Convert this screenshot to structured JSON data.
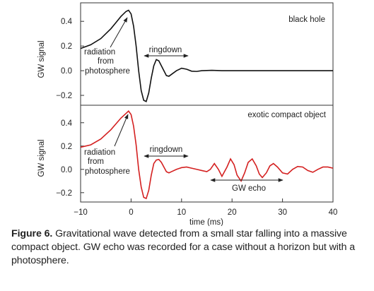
{
  "figure": {
    "caption_label": "Figure 6.",
    "caption_text": "Gravitational wave detected from a small star falling into a massive compact object. GW echo was recorded for a case without a horizon but with a photosphere."
  },
  "chart_data": [
    {
      "type": "line",
      "panel_label": "black hole",
      "ylabel": "GW signal",
      "xlim": [
        -10,
        40
      ],
      "ylim": [
        -0.28,
        0.55
      ],
      "yticks": [
        0.4,
        0.2,
        0.0,
        -0.2
      ],
      "ytick_labels": [
        "0.4",
        "0.2",
        "0.0",
        "−0.2"
      ],
      "series": [
        {
          "color": "#111111",
          "x": [
            -10,
            -8,
            -6,
            -4,
            -3,
            -2,
            -1,
            -0.5,
            0,
            0.5,
            1,
            1.5,
            2,
            2.5,
            3,
            3.5,
            4,
            4.5,
            5,
            5.5,
            6,
            6.5,
            7,
            7.5,
            8,
            9,
            10,
            11,
            12,
            13,
            14,
            16,
            18,
            20,
            25,
            30,
            40
          ],
          "y": [
            0.18,
            0.21,
            0.26,
            0.34,
            0.39,
            0.44,
            0.48,
            0.49,
            0.46,
            0.36,
            0.2,
            0.0,
            -0.16,
            -0.24,
            -0.25,
            -0.18,
            -0.06,
            0.04,
            0.09,
            0.08,
            0.04,
            0.0,
            -0.04,
            -0.045,
            -0.03,
            0.0,
            0.02,
            0.012,
            -0.004,
            -0.006,
            0.0,
            0.003,
            0.0,
            0.0,
            0.0,
            0.0,
            0.0
          ]
        }
      ],
      "annotations": [
        {
          "text": "radiation",
          "line": 1
        },
        {
          "text": "from",
          "line": 2
        },
        {
          "text": "photosphere",
          "line": 3
        },
        {
          "text": "ringdown",
          "line": 1
        }
      ]
    },
    {
      "type": "line",
      "panel_label": "exotic compact object",
      "ylabel": "GW signal",
      "xlabel": "time (ms)",
      "xlim": [
        -10,
        40
      ],
      "ylim": [
        -0.28,
        0.55
      ],
      "xticks": [
        -10,
        0,
        10,
        20,
        30,
        40
      ],
      "xtick_labels": [
        "−10",
        "0",
        "10",
        "20",
        "30",
        "40"
      ],
      "yticks": [
        0.4,
        0.2,
        0.0,
        -0.2
      ],
      "ytick_labels": [
        "0.4",
        "0.2",
        "0.0",
        "−0.2"
      ],
      "series": [
        {
          "color": "#d42020",
          "x": [
            -10,
            -8,
            -6,
            -4,
            -3,
            -2,
            -1,
            -0.5,
            0,
            0.5,
            1,
            1.5,
            2,
            2.5,
            3,
            3.5,
            4,
            4.5,
            5,
            5.5,
            6,
            6.5,
            7,
            7.5,
            8,
            9,
            10,
            11,
            12,
            13,
            14,
            15,
            15.7,
            16.5,
            17.3,
            18,
            19,
            19.7,
            20.4,
            21,
            21.8,
            22.5,
            23.2,
            24,
            24.8,
            25.4,
            26,
            26.8,
            27.5,
            28.2,
            29,
            30,
            31,
            32,
            33,
            34,
            35,
            36,
            37,
            38,
            39,
            40
          ],
          "y": [
            0.19,
            0.21,
            0.26,
            0.34,
            0.39,
            0.44,
            0.48,
            0.5,
            0.47,
            0.37,
            0.21,
            0.0,
            -0.15,
            -0.24,
            -0.25,
            -0.18,
            -0.05,
            0.05,
            0.08,
            0.085,
            0.06,
            0.02,
            -0.02,
            -0.03,
            -0.02,
            0.0,
            0.015,
            0.02,
            0.01,
            0.0,
            -0.01,
            -0.02,
            0.0,
            0.05,
            0.0,
            -0.06,
            0.02,
            0.09,
            0.04,
            -0.05,
            -0.1,
            -0.03,
            0.06,
            0.09,
            0.03,
            -0.04,
            -0.07,
            -0.03,
            0.03,
            0.05,
            0.02,
            -0.03,
            -0.04,
            0.0,
            0.025,
            0.02,
            -0.01,
            -0.025,
            0.0,
            0.02,
            0.02,
            0.01
          ]
        }
      ],
      "annotations": [
        {
          "text": "radiation",
          "line": 1
        },
        {
          "text": "from",
          "line": 2
        },
        {
          "text": "photosphere",
          "line": 3
        },
        {
          "text": "ringdown",
          "line": 1
        },
        {
          "text": "GW echo",
          "line": 1
        }
      ]
    }
  ]
}
